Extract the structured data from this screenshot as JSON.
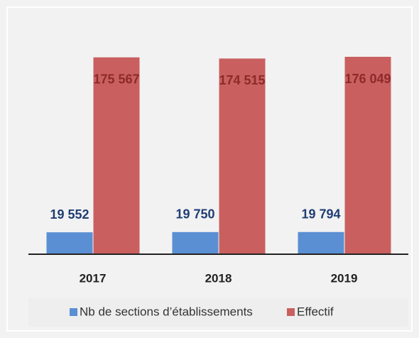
{
  "chart_data": {
    "type": "bar",
    "categories": [
      "2017",
      "2018",
      "2019"
    ],
    "series": [
      {
        "name": "Nb de sections d’établissements",
        "color": "#5b8fd3",
        "values": [
          19552,
          19750,
          19794
        ],
        "value_labels": [
          "19 552",
          "19 750",
          "19 794"
        ],
        "label_color": "#1f3d73"
      },
      {
        "name": "Effectif",
        "color": "#c9605f",
        "values": [
          175567,
          174515,
          176049
        ],
        "value_labels": [
          "175 567",
          "174 515",
          "176 049"
        ],
        "label_color": "#8c2a2a"
      }
    ]
  }
}
